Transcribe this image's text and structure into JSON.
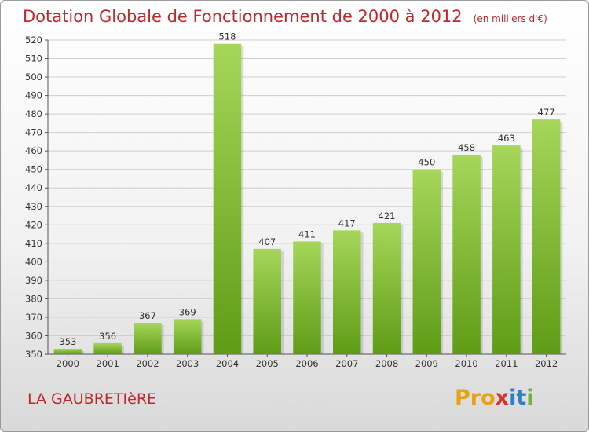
{
  "header": {
    "title": "Dotation Globale de Fonctionnement de 2000 à 2012",
    "unit_note": "(en milliers d'€)"
  },
  "footer": {
    "place": "LA GAUBRETIèRE",
    "logo_parts": [
      "Pro",
      "x",
      "it",
      "i"
    ]
  },
  "colors": {
    "title": "#c1272d",
    "bar_light": "#a6d65a",
    "bar_dark": "#5f9c16",
    "grid": "#cfcfcf"
  },
  "chart_data": {
    "type": "bar",
    "title": "Dotation Globale de Fonctionnement de 2000 à 2012",
    "subtitle": "(en milliers d'€)",
    "xlabel": "",
    "ylabel": "",
    "categories": [
      "2000",
      "2001",
      "2002",
      "2003",
      "2004",
      "2005",
      "2006",
      "2007",
      "2008",
      "2009",
      "2010",
      "2011",
      "2012"
    ],
    "values": [
      353,
      356,
      367,
      369,
      518,
      407,
      411,
      417,
      421,
      450,
      458,
      463,
      477
    ],
    "ylim": [
      350,
      520
    ],
    "ytick_step": 10,
    "grid": true,
    "legend": "none",
    "data_labels": true
  }
}
